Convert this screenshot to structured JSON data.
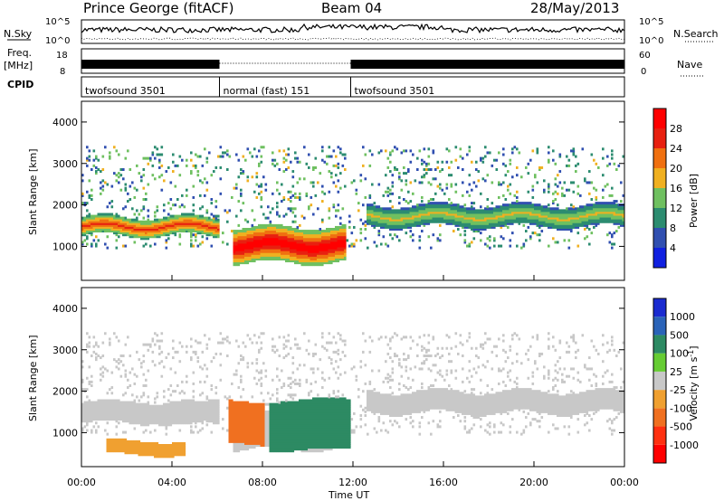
{
  "header": {
    "station": "Prince George (fitACF)",
    "beam": "Beam 04",
    "date": "28/May/2013"
  },
  "strip_labels": {
    "nsky": "N.Sky",
    "nsky_ticks": [
      "10^5",
      "10^0"
    ],
    "nsearch": "N.Search",
    "nsearch_ticks": [
      "10^5",
      "10^0"
    ],
    "freq": "Freq.",
    "freq_unit": "[MHz]",
    "freq_ticks": [
      "18",
      "8"
    ],
    "nave": "Nave",
    "nave_ticks": [
      "60",
      "0"
    ],
    "cpid": "CPID"
  },
  "cpid_segments": [
    {
      "label": "twofsound 3501",
      "start_hour": 0,
      "end_hour": 6.1
    },
    {
      "label": "normal (fast) 151",
      "start_hour": 6.1,
      "end_hour": 11.9
    },
    {
      "label": "twofsound 3501",
      "start_hour": 11.9,
      "end_hour": 24
    }
  ],
  "axes": {
    "y_label": "Slant Range [km]",
    "y_ticks": [
      1000,
      2000,
      3000,
      4000
    ],
    "y_range_km": [
      180,
      4500
    ],
    "x_label": "Time UT",
    "x_ticks": [
      "00:00",
      "04:00",
      "08:00",
      "12:00",
      "16:00",
      "20:00",
      "00:00"
    ],
    "x_range_hours": [
      0,
      24
    ]
  },
  "power_scale": {
    "label": "Power [dB]",
    "ticks": [
      "4",
      "8",
      "12",
      "16",
      "20",
      "24",
      "28"
    ],
    "colors": [
      "#1020e0",
      "#304fb0",
      "#2c8c70",
      "#6fc060",
      "#f0b020",
      "#f07010",
      "#e82010",
      "#ff0000"
    ]
  },
  "velocity_scale": {
    "label": "Velocity [m s",
    "unit_sup": "-1",
    "unit_end": "]",
    "ticks": [
      "1000",
      "500",
      "100",
      "25",
      "-25",
      "-100",
      "-500",
      "-1000"
    ],
    "colors": [
      "#1a2bd0",
      "#2a63b8",
      "#2d8a63",
      "#66cc33",
      "#c8c8c8",
      "#f0a030",
      "#f07020",
      "#ff3010",
      "#ff0000"
    ]
  },
  "chart_data": {
    "type": "heatmap",
    "title": "Prince George (fitACF)  Beam 04  28/May/2013",
    "xlabel": "Time UT",
    "ylabel": "Slant Range [km]",
    "xlim": [
      0,
      24
    ],
    "ylim": [
      180,
      4500
    ],
    "panels": [
      {
        "name": "Power",
        "unit": "dB",
        "scale": [
          0,
          30
        ],
        "features": [
          {
            "t_start": 0.0,
            "t_end": 6.0,
            "range_km": 1450,
            "width_km": 220,
            "power_db": 24
          },
          {
            "t_start": 6.6,
            "t_end": 11.6,
            "range_km": 1000,
            "width_km": 420,
            "power_db": 30
          },
          {
            "t_start": 12.5,
            "t_end": 24.0,
            "range_km": 1700,
            "width_km": 250,
            "power_db": 16
          }
        ]
      },
      {
        "name": "Velocity",
        "unit": "m s^-1",
        "scale": [
          -1000,
          1000
        ],
        "features": [
          {
            "t_start": 0.0,
            "t_end": 6.0,
            "range_km": 1450,
            "width_km": 240,
            "velocity": 0
          },
          {
            "t_start": 6.4,
            "t_end": 8.0,
            "range_km": 1200,
            "width_km": 500,
            "velocity": -300
          },
          {
            "t_start": 8.2,
            "t_end": 11.8,
            "range_km": 1150,
            "width_km": 600,
            "velocity": 300
          },
          {
            "t_start": 1.0,
            "t_end": 4.5,
            "range_km": 600,
            "width_km": 160,
            "velocity": -200
          }
        ]
      }
    ]
  }
}
